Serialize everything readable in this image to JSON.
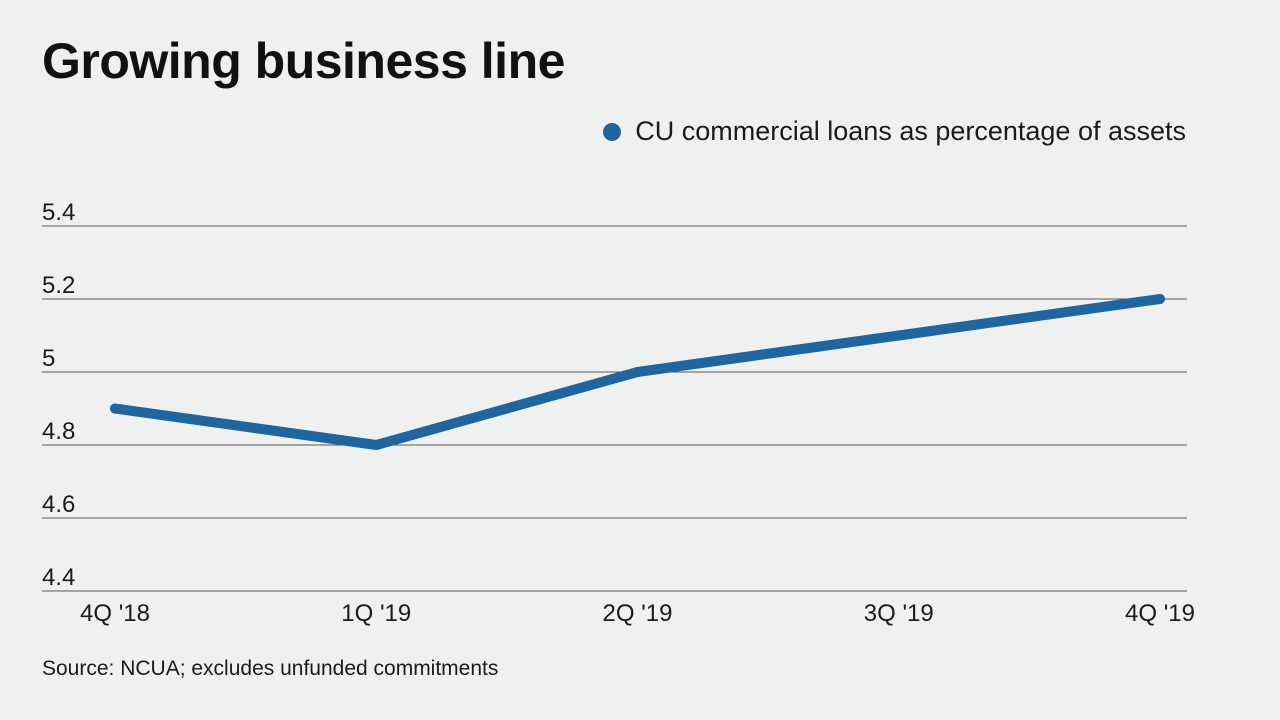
{
  "chart_data": {
    "type": "line",
    "title": "Growing business line",
    "categories": [
      "4Q '18",
      "1Q '19",
      "2Q '19",
      "3Q '19",
      "4Q '19"
    ],
    "series": [
      {
        "name": "CU commercial loans as percentage of assets",
        "values": [
          4.9,
          4.8,
          5.0,
          5.1,
          5.2
        ],
        "color": "#1f66a0"
      }
    ],
    "yticks": [
      "4.4",
      "4.6",
      "4.8",
      "5",
      "5.2",
      "5.4"
    ],
    "ylim": [
      4.4,
      5.4
    ],
    "grid": true,
    "legend_position": "top-right",
    "xlabel": "",
    "ylabel": ""
  },
  "footer": {
    "source": "Source: NCUA; excludes unfunded commitments"
  },
  "colors": {
    "background": "#eff1f1",
    "gridline": "#5a5a5a"
  }
}
